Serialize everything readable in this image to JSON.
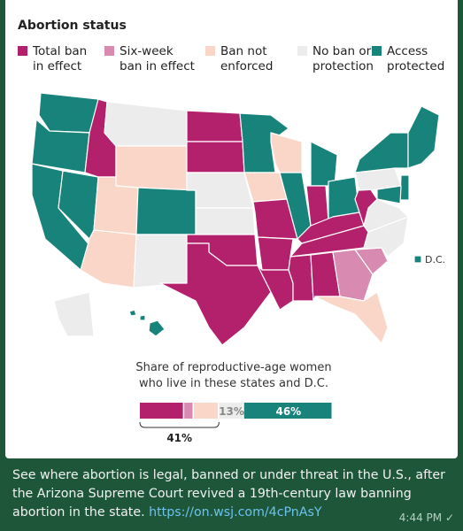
{
  "header": {
    "title": "Abortion status"
  },
  "legend": [
    {
      "label": "Total ban\nin effect",
      "color": "#b3206c"
    },
    {
      "label": "Six-week\nban in effect",
      "color": "#d98ab1"
    },
    {
      "label": "Ban not\nenforced",
      "color": "#f9d6c8"
    },
    {
      "label": "No ban or\nprotection",
      "color": "#ececec"
    },
    {
      "label": "Access\nprotected",
      "color": "#17837b"
    }
  ],
  "map": {
    "dc_label": "D.C."
  },
  "chart_data": {
    "type": "stacked-bar",
    "title": "Share of reproductive-age women\nwho live in these states and D.C.",
    "values": [
      23,
      5,
      13,
      13,
      46
    ],
    "value_labels": [
      null,
      null,
      null,
      "13%",
      "46%"
    ],
    "xlim": [
      0,
      100
    ],
    "bracket": {
      "value": 41,
      "label": "41%"
    }
  },
  "message": {
    "text": "See where abortion is legal, banned or under threat in the U.S., after the Arizona Supreme Court revived a 19th-century law banning abortion in the state.",
    "link": "https://on.wsj.com/4cPnAsY",
    "time": "4:44 PM"
  }
}
